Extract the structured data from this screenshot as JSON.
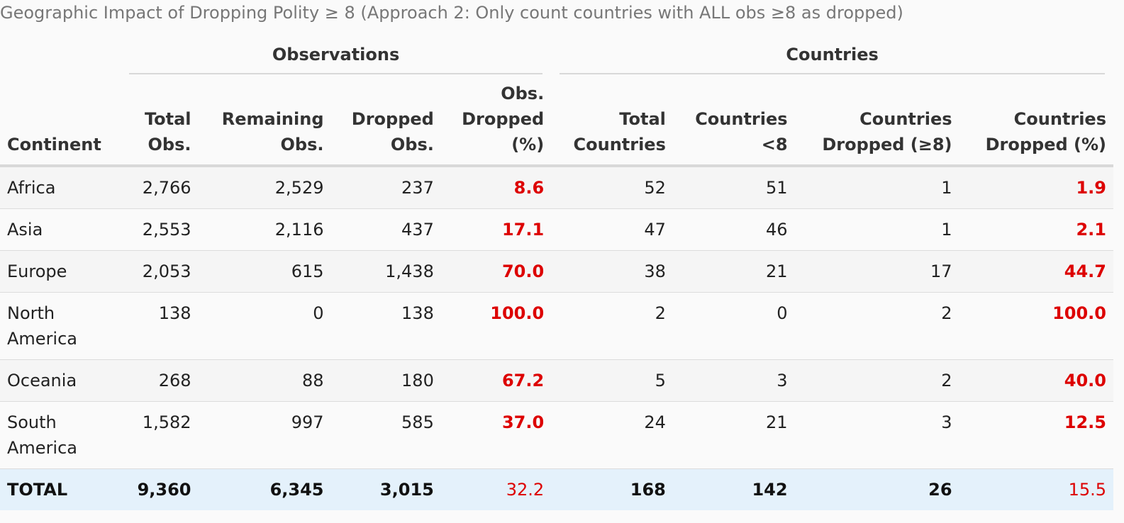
{
  "caption": "Geographic Impact of Dropping Polity ≥ 8 (Approach 2: Only count countries with ALL obs ≥8 as dropped)",
  "spanners": {
    "observations": "Observations",
    "countries": "Countries"
  },
  "columns": {
    "continent": "Continent",
    "total_obs": [
      "Total",
      "Obs."
    ],
    "remaining_obs": [
      "Remaining",
      "Obs."
    ],
    "dropped_obs": [
      "Dropped",
      "Obs."
    ],
    "obs_dropped_pct": [
      "Obs.",
      "Dropped",
      "(%)"
    ],
    "total_countries": [
      "Total",
      "Countries"
    ],
    "countries_lt8": [
      "Countries",
      "<8"
    ],
    "countries_dropped": [
      "Countries",
      "Dropped (≥8)"
    ],
    "countries_dropped_pct": [
      "Countries",
      "Dropped (%)"
    ]
  },
  "rows": [
    {
      "continent": [
        "Africa"
      ],
      "total_obs": "2,766",
      "remaining_obs": "2,529",
      "dropped_obs": "237",
      "obs_dropped_pct": "8.6",
      "total_countries": "52",
      "countries_lt8": "51",
      "countries_dropped": "1",
      "countries_dropped_pct": "1.9"
    },
    {
      "continent": [
        "Asia"
      ],
      "total_obs": "2,553",
      "remaining_obs": "2,116",
      "dropped_obs": "437",
      "obs_dropped_pct": "17.1",
      "total_countries": "47",
      "countries_lt8": "46",
      "countries_dropped": "1",
      "countries_dropped_pct": "2.1"
    },
    {
      "continent": [
        "Europe"
      ],
      "total_obs": "2,053",
      "remaining_obs": "615",
      "dropped_obs": "1,438",
      "obs_dropped_pct": "70.0",
      "total_countries": "38",
      "countries_lt8": "21",
      "countries_dropped": "17",
      "countries_dropped_pct": "44.7"
    },
    {
      "continent": [
        "North",
        "America"
      ],
      "total_obs": "138",
      "remaining_obs": "0",
      "dropped_obs": "138",
      "obs_dropped_pct": "100.0",
      "total_countries": "2",
      "countries_lt8": "0",
      "countries_dropped": "2",
      "countries_dropped_pct": "100.0"
    },
    {
      "continent": [
        "Oceania"
      ],
      "total_obs": "268",
      "remaining_obs": "88",
      "dropped_obs": "180",
      "obs_dropped_pct": "67.2",
      "total_countries": "5",
      "countries_lt8": "3",
      "countries_dropped": "2",
      "countries_dropped_pct": "40.0"
    },
    {
      "continent": [
        "South",
        "America"
      ],
      "total_obs": "1,582",
      "remaining_obs": "997",
      "dropped_obs": "585",
      "obs_dropped_pct": "37.0",
      "total_countries": "24",
      "countries_lt8": "21",
      "countries_dropped": "3",
      "countries_dropped_pct": "12.5"
    }
  ],
  "total": {
    "continent": "TOTAL",
    "total_obs": "9,360",
    "remaining_obs": "6,345",
    "dropped_obs": "3,015",
    "obs_dropped_pct": "32.2",
    "total_countries": "168",
    "countries_lt8": "142",
    "countries_dropped": "26",
    "countries_dropped_pct": "15.5"
  },
  "colors": {
    "highlight_red": "#dd0000",
    "total_row_bg": "#e4f1fb",
    "caption_gray": "#777777"
  }
}
